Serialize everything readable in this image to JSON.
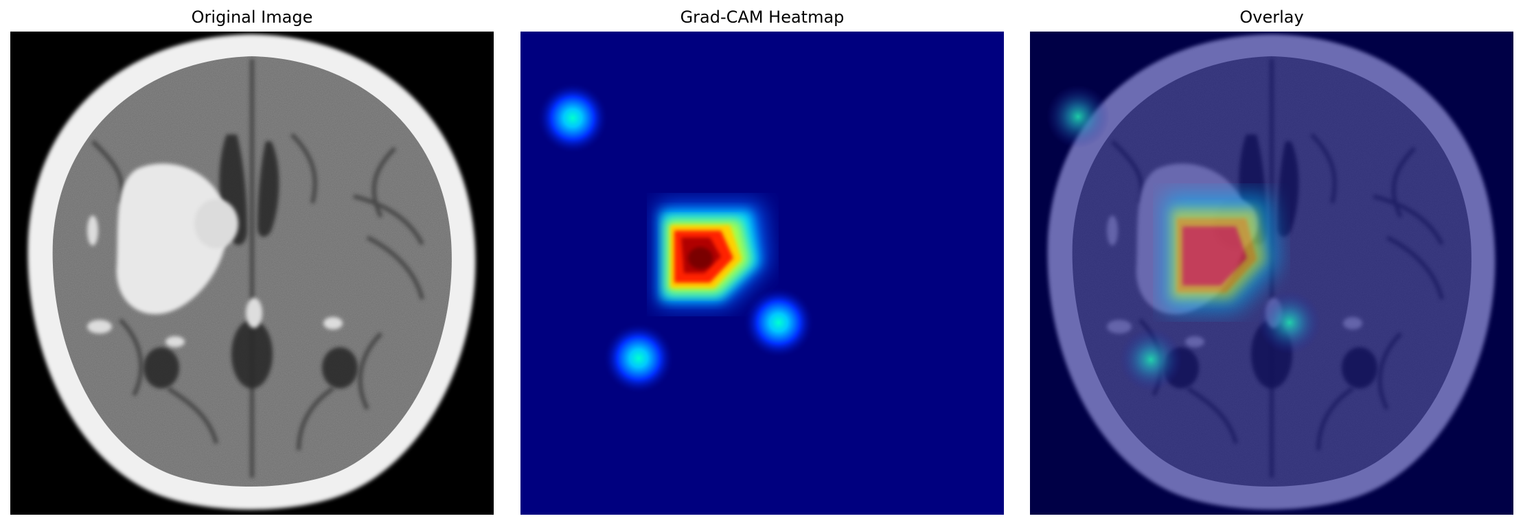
{
  "panels": [
    {
      "title": "Original Image",
      "icon": "ct-brain-scan-image"
    },
    {
      "title": "Grad-CAM Heatmap",
      "icon": "gradcam-heatmap-image"
    },
    {
      "title": "Overlay",
      "icon": "heatmap-overlay-image"
    }
  ],
  "colors": {
    "heatmap_background": "#00007f",
    "heatmap_hot": "#b00000",
    "heatmap_warm": "#ffd000",
    "heatmap_cool": "#00e0ff",
    "scan_bone": "#f2f2f2",
    "scan_tissue": "#777777",
    "scan_background": "#000000",
    "overlay_tint": "#5a5ab8"
  }
}
